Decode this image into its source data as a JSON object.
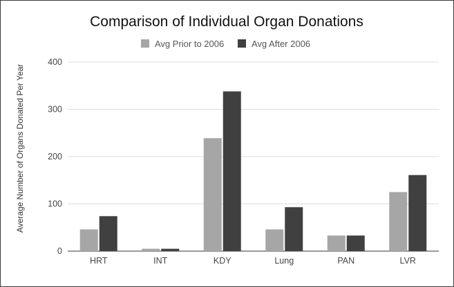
{
  "chart_data": {
    "type": "bar",
    "title": "Comparison of Individual Organ Donations",
    "xlabel": "",
    "ylabel": "Average Number of Organs Donated Per Year",
    "categories": [
      "HRT",
      "INT",
      "KDY",
      "Lung",
      "PAN",
      "LVR"
    ],
    "series": [
      {
        "name": "Avg Prior to 2006",
        "color": "#a6a6a6",
        "values": [
          46,
          5,
          239,
          46,
          33,
          125
        ]
      },
      {
        "name": "Avg After 2006",
        "color": "#404040",
        "values": [
          74,
          5,
          338,
          93,
          33,
          161
        ]
      }
    ],
    "ylim": [
      0,
      400
    ],
    "yticks": [
      0,
      100,
      200,
      300,
      400
    ],
    "grid": true,
    "legend_position": "top-center"
  }
}
